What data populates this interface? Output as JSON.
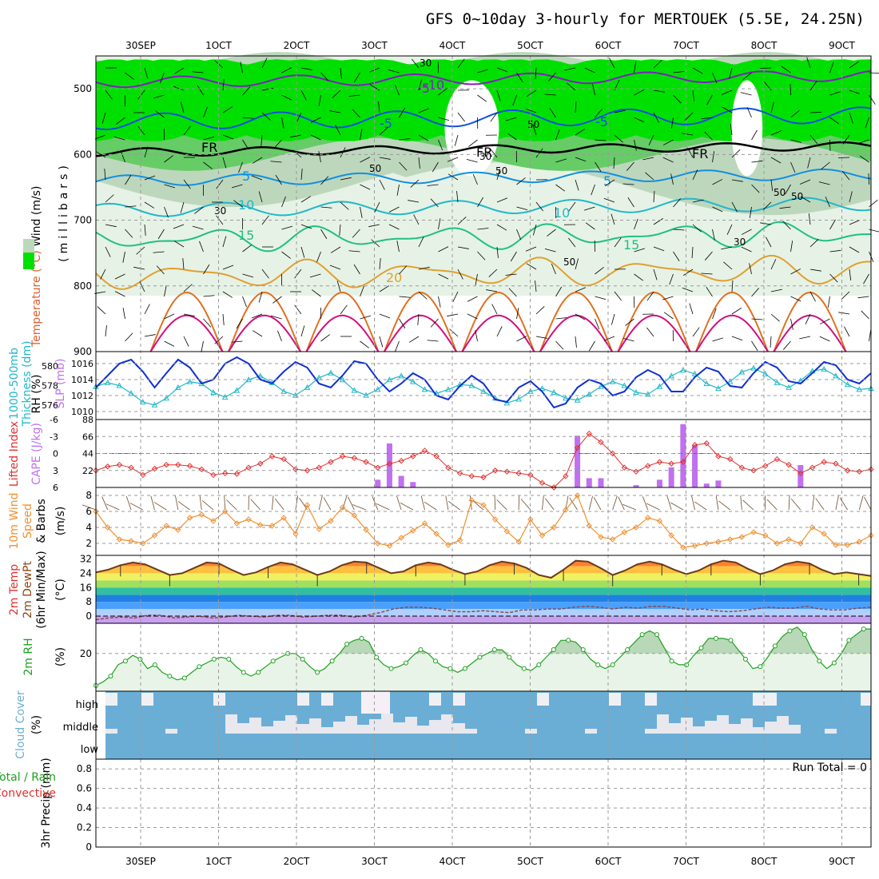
{
  "title": "GFS 0~10day 3-hourly for MERTOUEK (5.5E, 24.25N)",
  "date_labels": [
    "30SEP",
    "1OCT",
    "2OCT",
    "3OCT",
    "4OCT",
    "5OCT",
    "6OCT",
    "7OCT",
    "8OCT",
    "9OCT"
  ],
  "run_total": "Run Total = 0",
  "colors": {
    "grid": "#999999",
    "rh_light": "#e6f2e6",
    "rh_mid": "#bdd7bd",
    "rh_green": "#66cc66",
    "rh_bright": "#00e000",
    "slp": "#1030d0",
    "thick": "#20b8c8",
    "li": "#e03030",
    "cape": "#c070f0",
    "wind": "#f09030",
    "rh2m": "#20a020",
    "cloud": "#6aaed6"
  },
  "chart_data": [
    {
      "type": "heatmap",
      "name": "upper",
      "axis_label_parts": [
        "RH (%)",
        "Temperature (°C)",
        "Wind (m/s)"
      ],
      "ylabel": "(millibars)",
      "yticks": [
        500,
        600,
        700,
        800,
        900
      ],
      "ylim": [
        450,
        900
      ],
      "contour_labels": [
        "-10",
        "-5",
        "FR",
        "5",
        "10",
        "15",
        "20",
        "FR",
        "-5",
        "5",
        "10",
        "15",
        "FR",
        "-5"
      ],
      "rh_labels": [
        "30",
        "50",
        "50",
        "50",
        "30",
        "30",
        "50",
        "30",
        "50",
        "50"
      ]
    },
    {
      "type": "line",
      "name": "slp-thickness",
      "left_label": [
        "1000-500mb",
        "Thickness (dm)"
      ],
      "right_label": "SLP (mb)",
      "thickness_ticks": [
        "580",
        "578",
        "576"
      ],
      "slp_ticks": [
        "1016",
        "1014",
        "1012",
        "1010"
      ],
      "slp_lim": [
        1009,
        1017.5
      ],
      "slp": [
        1013,
        1014.5,
        1016,
        1016.5,
        1015,
        1013,
        1014.8,
        1016.5,
        1015.5,
        1013.5,
        1014,
        1016,
        1016.8,
        1016,
        1014,
        1013.5,
        1015,
        1016.2,
        1015.5,
        1013.5,
        1013,
        1014.5,
        1016.3,
        1016,
        1014,
        1012.5,
        1013.5,
        1014.8,
        1014,
        1012,
        1011.5,
        1013.2,
        1014.5,
        1013.5,
        1011.5,
        1011.2,
        1013,
        1013.8,
        1012.5,
        1010.5,
        1011,
        1013,
        1014,
        1013.5,
        1012,
        1012.5,
        1014.3,
        1015.2,
        1014.5,
        1012.5,
        1012.5,
        1014.3,
        1015.5,
        1015,
        1013.2,
        1013,
        1014.8,
        1016.2,
        1015.5,
        1013.8,
        1013.5,
        1014.8,
        1016.2,
        1015.8,
        1014,
        1013.5,
        1014.8
      ],
      "thickness": [
        577.9,
        578.3,
        578.0,
        577.2,
        576.3,
        576.0,
        576.7,
        577.8,
        578.4,
        578.2,
        577.3,
        576.8,
        577.5,
        578.6,
        579.0,
        578.3,
        577.4,
        577.0,
        577.8,
        578.8,
        579.3,
        578.6,
        577.5,
        577.0,
        577.6,
        578.6,
        579.0,
        578.4,
        577.6,
        577.2,
        577.6,
        578.1,
        578.0,
        577.4,
        576.7,
        576.2,
        576.6,
        577.4,
        577.7,
        577.3,
        576.7,
        576.5,
        577.1,
        577.9,
        578.4,
        578.0,
        577.3,
        577.1,
        577.9,
        579.0,
        579.6,
        579.2,
        578.2,
        577.7,
        578.4,
        579.4,
        579.8,
        579.2,
        578.3,
        577.8,
        578.5,
        579.5,
        579.7,
        579.0,
        578.1,
        577.6,
        577.7
      ]
    },
    {
      "type": "bar",
      "name": "li-cape",
      "left_label": "Lifted Index",
      "right_label": "CAPE (J/kg)",
      "li_ticks": [
        "-6",
        "-3",
        "0",
        "3",
        "6"
      ],
      "cape_ticks": [
        "88",
        "66",
        "44",
        "22"
      ],
      "cape_lim": [
        0,
        88
      ],
      "li_lim": [
        6,
        -6
      ],
      "lifted_index": [
        3.0,
        2.3,
        2.0,
        2.5,
        3.8,
        2.7,
        2.0,
        2.0,
        2.2,
        2.8,
        3.8,
        3.5,
        3.6,
        2.5,
        1.8,
        0.5,
        1.0,
        2.8,
        3.0,
        2.5,
        1.5,
        0.5,
        0.8,
        1.5,
        2.5,
        1.8,
        1.3,
        0.5,
        -0.5,
        0.5,
        2.5,
        3.5,
        4.0,
        4.2,
        3.0,
        3.2,
        3.5,
        3.8,
        5.2,
        6.0,
        4.0,
        -1.0,
        -3.5,
        -2.0,
        0.0,
        2.5,
        3.2,
        2.2,
        1.5,
        1.8,
        1.5,
        -1.5,
        -1.8,
        0.5,
        1.0,
        2.5,
        3.0,
        2.2,
        1.0,
        2.0,
        3.5,
        2.5,
        1.5,
        1.8,
        3.0,
        3.2,
        2.8
      ],
      "cape": [
        0,
        0,
        0,
        0,
        0,
        0,
        0,
        0,
        0,
        0,
        0,
        0,
        0,
        0,
        0,
        0,
        0,
        0,
        0,
        0,
        0,
        0,
        0,
        0,
        10,
        57,
        15,
        7,
        0,
        0,
        0,
        0,
        0,
        0,
        0,
        0,
        0,
        0,
        0,
        0,
        0,
        67,
        12,
        12,
        0,
        0,
        3,
        0,
        10,
        26,
        82,
        55,
        5,
        9,
        0,
        0,
        0,
        0,
        0,
        0,
        29,
        0,
        0,
        0,
        0,
        0,
        0
      ]
    },
    {
      "type": "line",
      "name": "wind",
      "left_label": [
        "10m Wind",
        "Speed",
        "& Barbs"
      ],
      "ylabel": "(m/s)",
      "yticks": [
        "8",
        "6",
        "4",
        "2"
      ],
      "ylim": [
        0.5,
        9
      ],
      "wind_speed": [
        6.0,
        4.0,
        2.5,
        2.3,
        2.0,
        3.0,
        4.2,
        3.7,
        5.2,
        5.6,
        4.8,
        6.0,
        4.5,
        5.0,
        4.3,
        4.2,
        5.2,
        3.2,
        6.8,
        3.8,
        4.8,
        6.5,
        5.5,
        3.7,
        2.0,
        1.7,
        2.7,
        3.6,
        4.5,
        3.2,
        1.8,
        2.4,
        7.4,
        6.8,
        5.0,
        3.5,
        2.2,
        5.0,
        3.0,
        4.0,
        6.2,
        8.0,
        4.2,
        2.8,
        2.5,
        3.4,
        4.0,
        5.2,
        4.8,
        3.0,
        1.5,
        1.7,
        2.0,
        2.2,
        2.5,
        2.8,
        3.4,
        3.0,
        2.0,
        2.5,
        2.0,
        4.0,
        3.2,
        1.8,
        1.8,
        2.2,
        3.0
      ]
    },
    {
      "type": "area",
      "name": "temp",
      "left_label": [
        "2m Temp",
        "2m DewPt",
        "(6hr Min/Max)"
      ],
      "ylabel": "(°C)",
      "yticks": [
        "32",
        "24",
        "16",
        "8",
        "0"
      ],
      "ylim": [
        -4,
        34
      ],
      "temperature": [
        24.5,
        26,
        28.5,
        30,
        29,
        26,
        23,
        24,
        27,
        30,
        29.5,
        26,
        23,
        24.5,
        27.5,
        30,
        29,
        26,
        23,
        25,
        28.5,
        30.5,
        30,
        27,
        24,
        25,
        28.5,
        30,
        29,
        26,
        23.5,
        25,
        28.5,
        30.5,
        29.5,
        27,
        23,
        21.5,
        26,
        31,
        30.5,
        27,
        23,
        25.5,
        29,
        30.5,
        29,
        26,
        23.5,
        25.5,
        29,
        31,
        30,
        26.5,
        23.5,
        25.5,
        29,
        30.5,
        29.5,
        26,
        23.5,
        24.5,
        23.5,
        22.5
      ],
      "dewpoint": [
        -2,
        -1,
        -0.5,
        -1,
        0.5,
        0.5,
        -1,
        -0.5,
        0,
        -1,
        -0.5,
        0.5,
        0,
        -0.5,
        0.5,
        0.5,
        -0.5,
        0,
        0.5,
        0.5,
        -0.5,
        0.5,
        2,
        4,
        5,
        5,
        4.5,
        3.5,
        2.5,
        2.5,
        3,
        2.5,
        2,
        3.5,
        3.5,
        4,
        4,
        5,
        5.5,
        5,
        4,
        5,
        4.5,
        5.5,
        5.5,
        4.5,
        3.5,
        4,
        3,
        2.5,
        3,
        4,
        5,
        4.5,
        4.5,
        5.5,
        4,
        3.5,
        3.5,
        4.5,
        5
      ]
    },
    {
      "type": "area",
      "name": "rh2m",
      "left_label": "2m RH",
      "ylabel": "(%)",
      "yticks": [
        "20"
      ],
      "ylim": [
        0,
        36
      ],
      "rh": [
        3,
        5,
        8,
        14,
        16,
        19,
        17,
        12,
        14,
        10,
        8,
        6,
        7,
        10,
        13,
        15,
        17,
        18,
        17,
        13,
        10,
        8,
        10,
        13,
        16,
        18,
        20,
        20,
        17,
        13,
        10,
        12,
        16,
        20,
        25,
        27,
        28,
        26,
        18,
        14,
        12,
        13,
        15,
        19,
        22,
        20,
        16,
        13,
        12,
        10,
        12,
        15,
        18,
        20,
        22,
        22,
        18,
        14,
        12,
        11,
        14,
        18,
        22,
        27,
        27,
        26,
        22,
        17,
        14,
        12,
        14,
        18,
        22,
        26,
        30,
        32,
        30,
        23,
        16,
        14,
        14,
        19,
        23,
        28,
        28,
        28,
        27,
        22,
        17,
        12,
        13,
        18,
        24,
        29,
        32,
        34,
        30,
        22,
        16,
        12,
        15,
        20,
        27,
        30,
        33,
        33
      ],
      "rh_count": 106
    },
    {
      "type": "heatmap",
      "name": "cloud",
      "left_label": "Cloud Cover",
      "ylabel": "(%)",
      "row_labels": [
        "high",
        "middle",
        "low"
      ]
    },
    {
      "type": "bar",
      "name": "precip",
      "left_label": [
        "Total / Rain",
        "Convective"
      ],
      "ylabel": "3hr Precip (mm)",
      "yticks": [
        "0.8",
        "0.6",
        "0.4",
        "0.2",
        "0"
      ],
      "ylim": [
        0,
        0.9
      ]
    }
  ]
}
